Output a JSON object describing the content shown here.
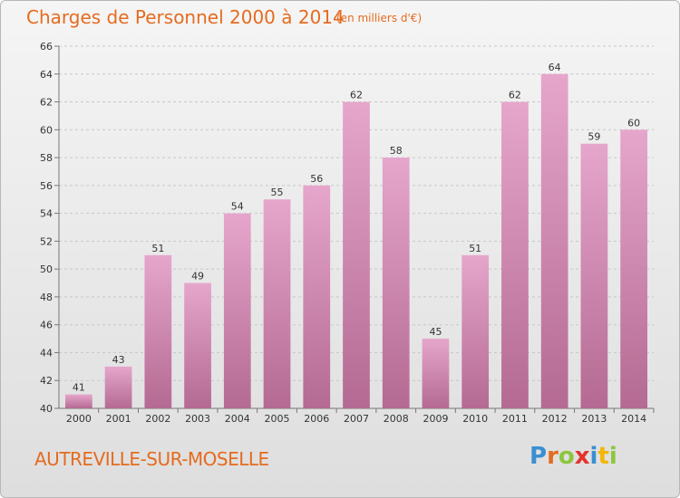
{
  "header": {
    "title": "Charges de Personnel 2000 à 2014",
    "subtitle": "(en milliers d'€)"
  },
  "footer": {
    "commune": "AUTREVILLE-SUR-MOSELLE",
    "logo": [
      "P",
      "r",
      "o",
      "x",
      "i",
      "t",
      "i"
    ]
  },
  "colors": {
    "title": "#e56b1f",
    "bar_top": "#e6a6cc",
    "bar_bottom": "#b46a92",
    "logo": [
      "#3a8fd1",
      "#e56b1f",
      "#8cc63f",
      "#e5322d",
      "#3a8fd1",
      "#f2b705",
      "#8cc63f"
    ]
  },
  "chart_data": {
    "type": "bar",
    "title": "Charges de Personnel 2000 à 2014",
    "subtitle": "(en milliers d'€)",
    "categories": [
      "2000",
      "2001",
      "2002",
      "2003",
      "2004",
      "2005",
      "2006",
      "2007",
      "2008",
      "2009",
      "2010",
      "2011",
      "2012",
      "2013",
      "2014"
    ],
    "values": [
      41,
      43,
      51,
      49,
      54,
      55,
      56,
      62,
      58,
      45,
      51,
      62,
      64,
      59,
      60
    ],
    "ylim": [
      40,
      66
    ],
    "yticks": [
      40,
      42,
      44,
      46,
      48,
      50,
      52,
      54,
      56,
      58,
      60,
      62,
      64,
      66
    ],
    "grid": true,
    "legend": "none"
  }
}
